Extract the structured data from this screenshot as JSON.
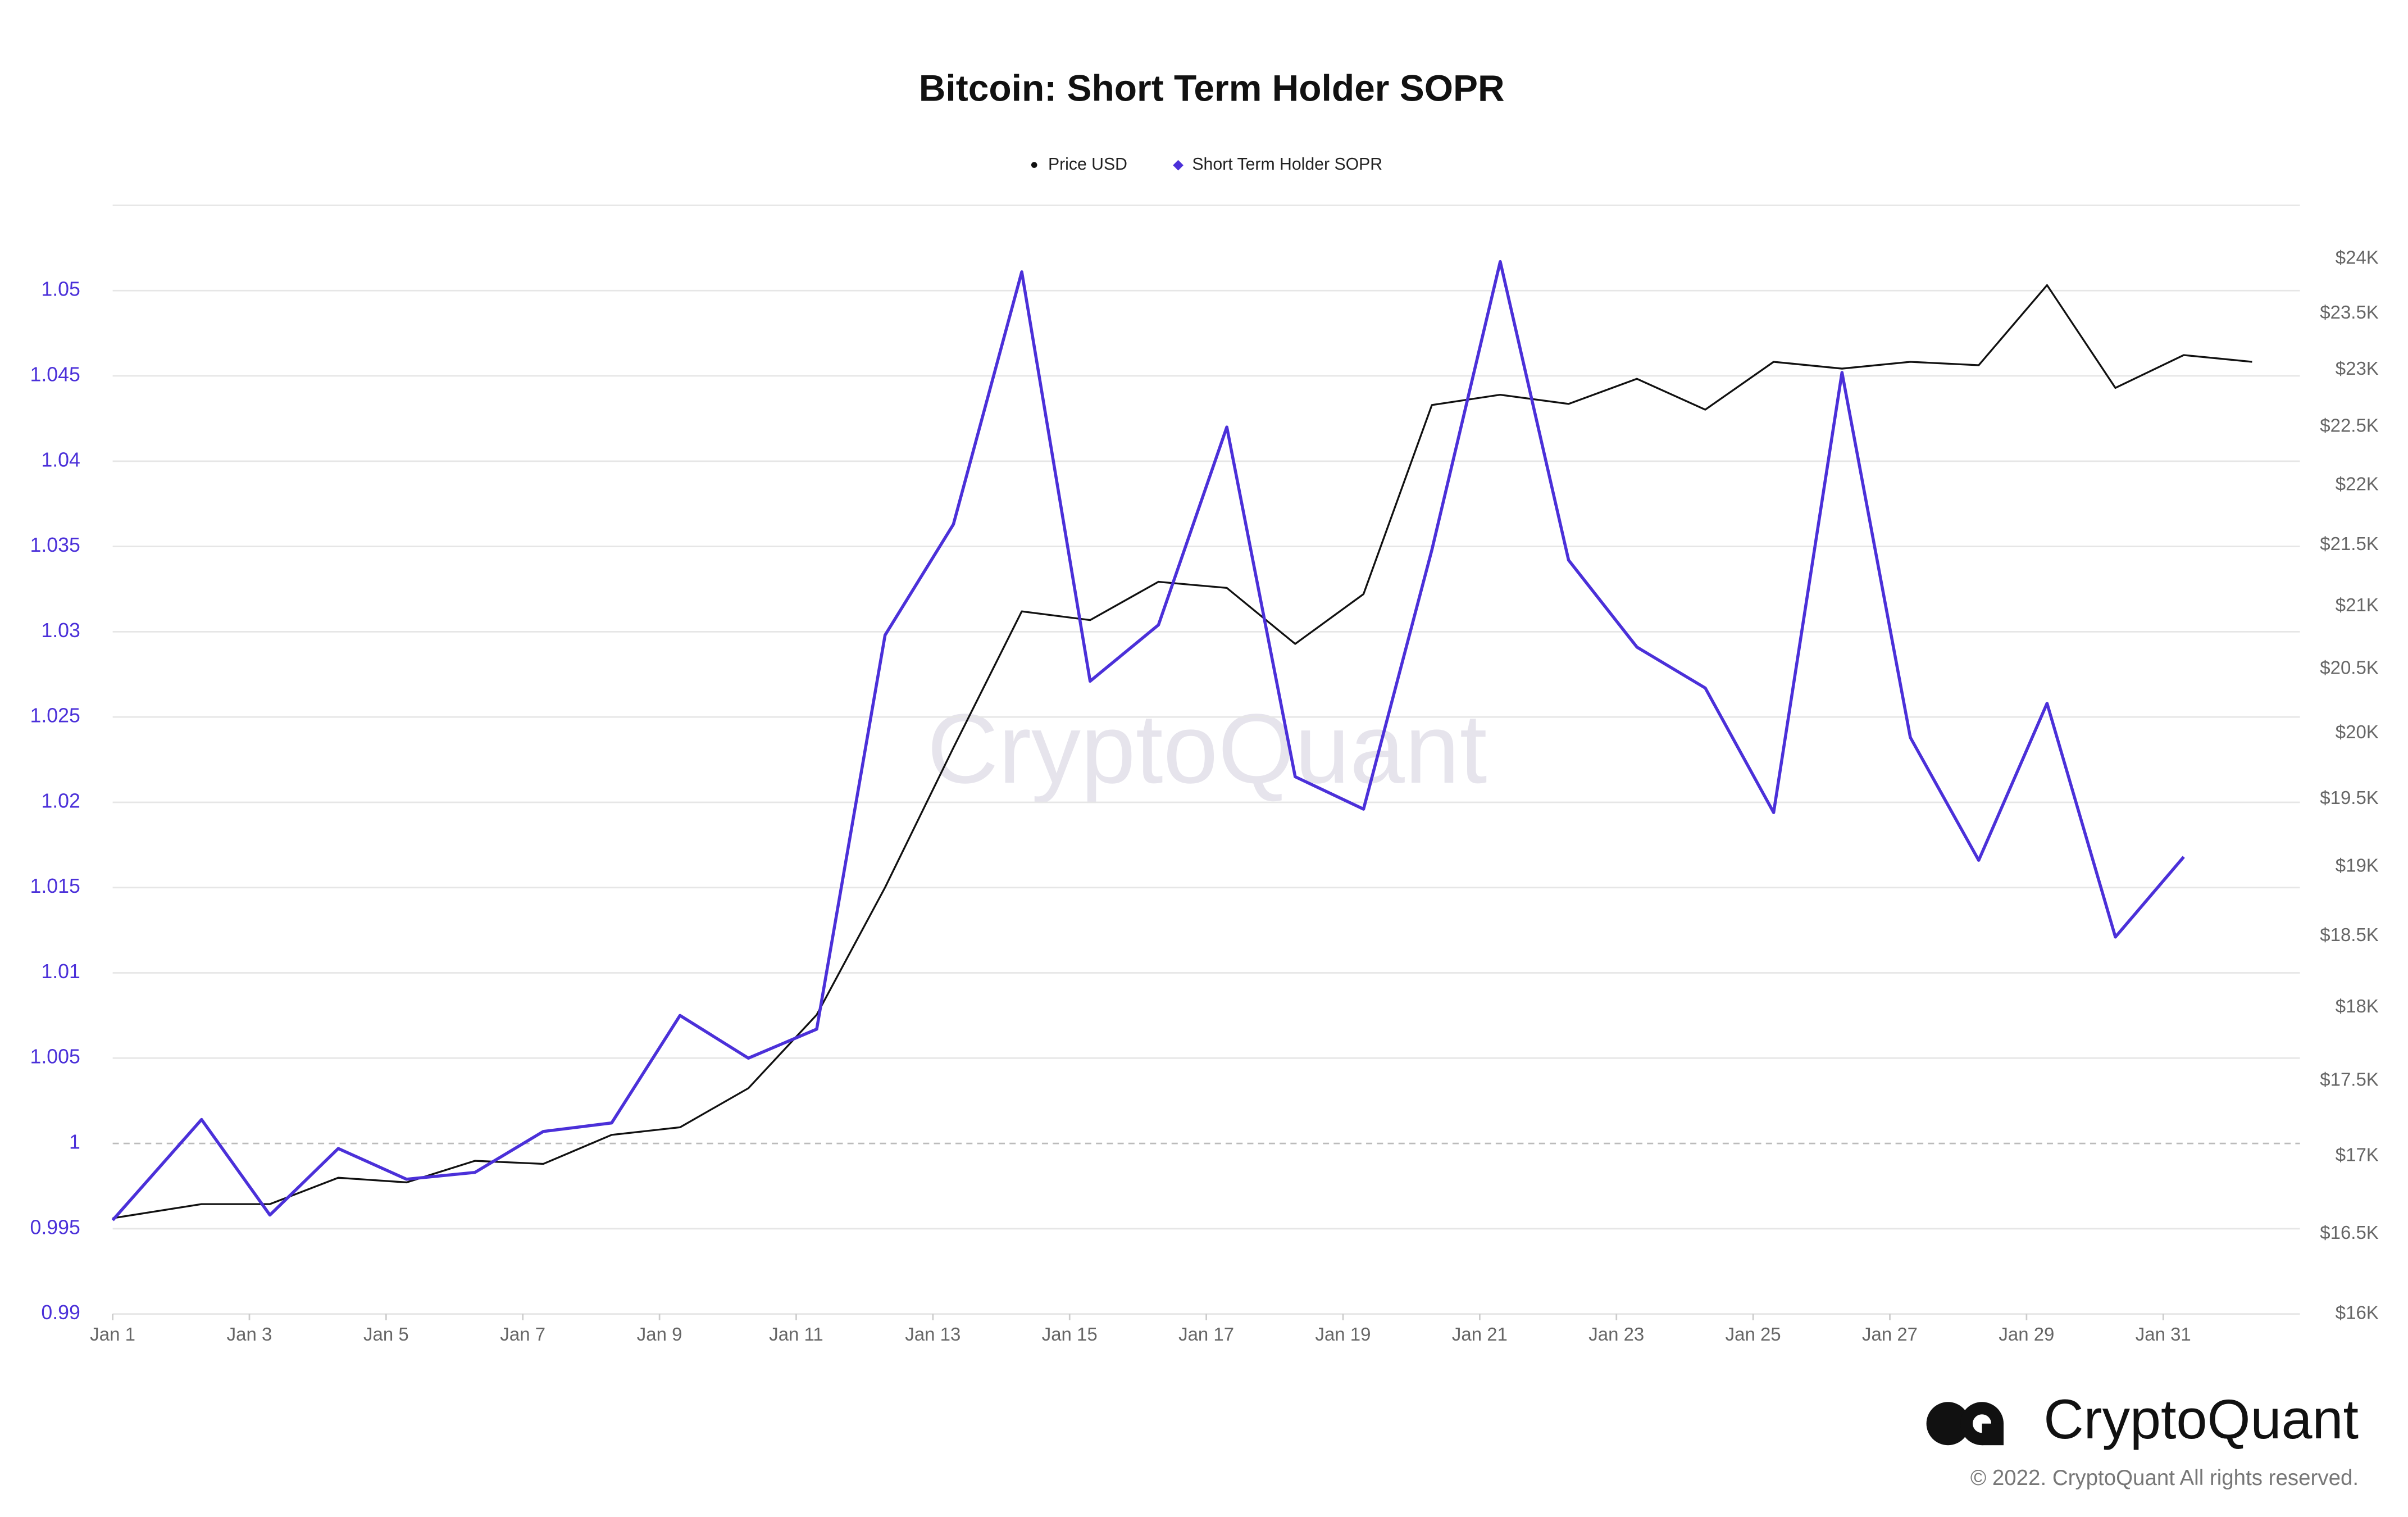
{
  "chart_data": {
    "type": "line",
    "title": "Bitcoin: Short Term Holder SOPR",
    "x": [
      1,
      2.3,
      3.3,
      4.3,
      5.3,
      6.3,
      7.3,
      8.3,
      9.3,
      10.3,
      11.3,
      12.3,
      13.3,
      14.3,
      15.3,
      16.3,
      17.3,
      18.3,
      19.3,
      20.3,
      21.3,
      22.3,
      23.3,
      24.3,
      25.3,
      26.3,
      27.3,
      28.3,
      29.3,
      30.3,
      31.3,
      32.3
    ],
    "xlim": [
      1,
      33
    ],
    "xticks": [
      {
        "value": 1,
        "label": "Jan 1"
      },
      {
        "value": 3,
        "label": "Jan 3"
      },
      {
        "value": 5,
        "label": "Jan 5"
      },
      {
        "value": 7,
        "label": "Jan 7"
      },
      {
        "value": 9,
        "label": "Jan 9"
      },
      {
        "value": 11,
        "label": "Jan 11"
      },
      {
        "value": 13,
        "label": "Jan 13"
      },
      {
        "value": 15,
        "label": "Jan 15"
      },
      {
        "value": 17,
        "label": "Jan 17"
      },
      {
        "value": 19,
        "label": "Jan 19"
      },
      {
        "value": 21,
        "label": "Jan 21"
      },
      {
        "value": 23,
        "label": "Jan 23"
      },
      {
        "value": 25,
        "label": "Jan 25"
      },
      {
        "value": 27,
        "label": "Jan 27"
      },
      {
        "value": 29,
        "label": "Jan 29"
      },
      {
        "value": 31,
        "label": "Jan 31"
      }
    ],
    "ylim": [
      0.99,
      1.055
    ],
    "yticks": [
      0.99,
      0.995,
      1,
      1.005,
      1.01,
      1.015,
      1.02,
      1.025,
      1.03,
      1.035,
      1.04,
      1.045,
      1.05
    ],
    "y2lim": [
      16000,
      24500
    ],
    "y2_log_scale": true,
    "y2ticks": [
      {
        "value": 16000,
        "label": "$16K"
      },
      {
        "value": 16500,
        "label": "$16.5K"
      },
      {
        "value": 17000,
        "label": "$17K"
      },
      {
        "value": 17500,
        "label": "$17.5K"
      },
      {
        "value": 18000,
        "label": "$18K"
      },
      {
        "value": 18500,
        "label": "$18.5K"
      },
      {
        "value": 19000,
        "label": "$19K"
      },
      {
        "value": 19500,
        "label": "$19.5K"
      },
      {
        "value": 20000,
        "label": "$20K"
      },
      {
        "value": 20500,
        "label": "$20.5K"
      },
      {
        "value": 21000,
        "label": "$21K"
      },
      {
        "value": 21500,
        "label": "$21.5K"
      },
      {
        "value": 22000,
        "label": "$22K"
      },
      {
        "value": 22500,
        "label": "$22.5K"
      },
      {
        "value": 23000,
        "label": "$23K"
      },
      {
        "value": 23500,
        "label": "$23.5K"
      },
      {
        "value": 24000,
        "label": "$24K"
      }
    ],
    "grid": true,
    "baseline": 1,
    "legend": "top",
    "series": [
      {
        "name": "Price USD",
        "color": "#111111",
        "axis": "y2",
        "marker": "●",
        "values": [
          16600,
          16690,
          16690,
          16860,
          16830,
          16970,
          16950,
          17140,
          17190,
          17450,
          17950,
          18850,
          19890,
          20960,
          20890,
          21200,
          21150,
          20700,
          21100,
          22690,
          22780,
          22700,
          22920,
          22650,
          23070,
          23010,
          23070,
          23040,
          23760,
          22840,
          23130,
          23070
        ]
      },
      {
        "name": "Short Term Holder SOPR",
        "color": "#4b30d9",
        "axis": "y",
        "marker": "◆",
        "values": [
          0.9955,
          1.0014,
          0.9958,
          0.9997,
          0.9979,
          0.9983,
          1.0007,
          1.0012,
          1.0075,
          1.005,
          1.0067,
          1.0298,
          1.0363,
          1.0511,
          1.0271,
          1.0304,
          1.042,
          1.0215,
          1.0196,
          1.0348,
          1.0517,
          1.0342,
          1.0291,
          1.0267,
          1.0194,
          1.0452,
          1.0238,
          1.0166,
          1.0258,
          1.0121,
          1.0168,
          null
        ]
      }
    ],
    "watermark": "CryptoQuant",
    "brand": "CryptoQuant",
    "copyright": "© 2022. CryptoQuant All rights reserved."
  }
}
